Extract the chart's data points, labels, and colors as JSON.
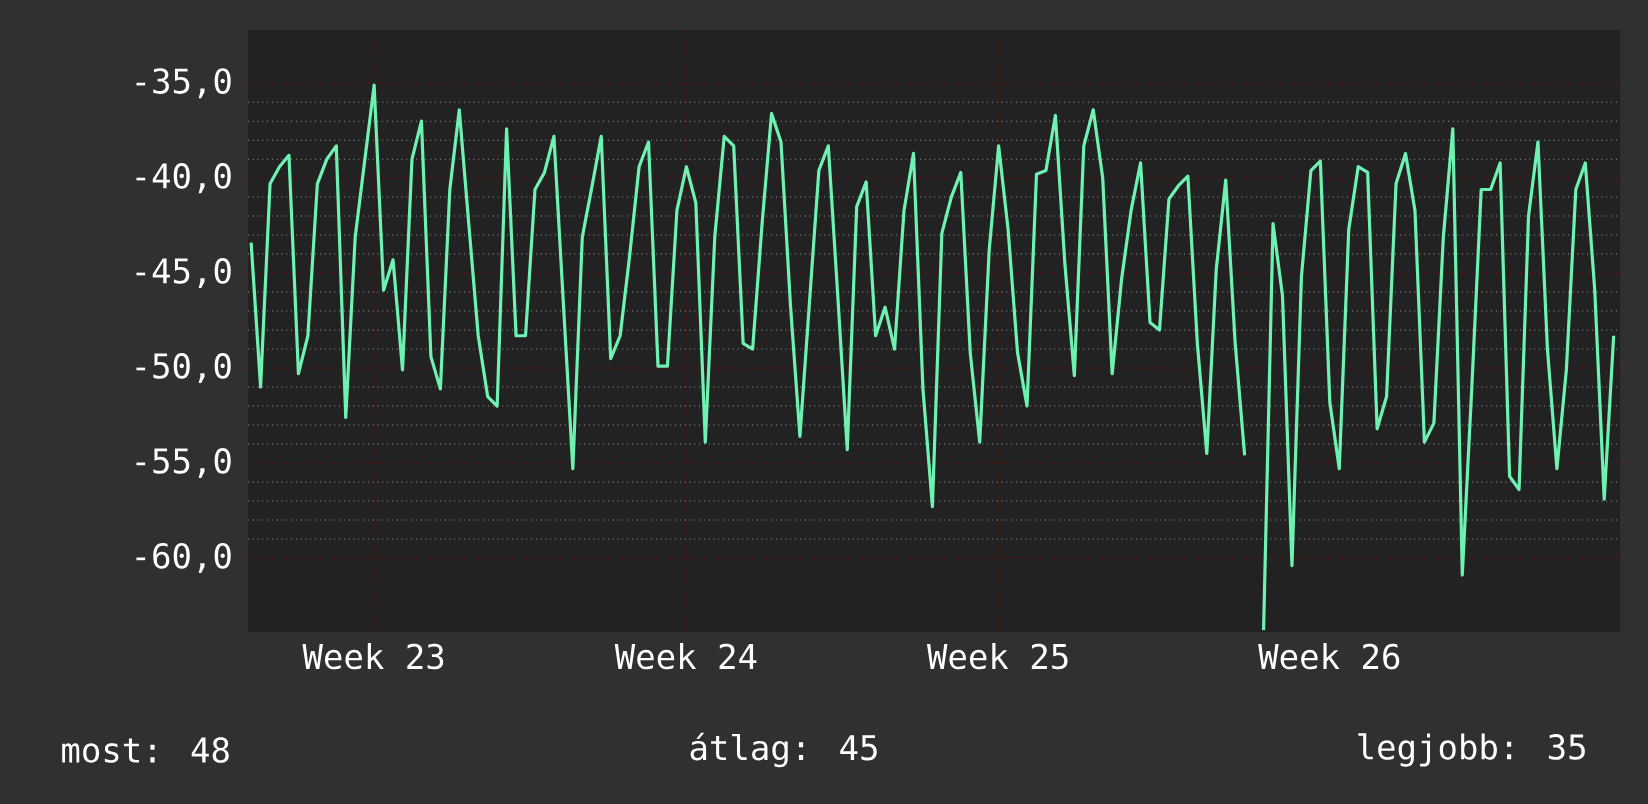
{
  "chart_data": {
    "type": "line",
    "color": "#6ef2b2",
    "grid": true,
    "ylim": [
      -63.9,
      -32.2
    ],
    "yticks": [
      {
        "value": -60,
        "label": "-60,0"
      },
      {
        "value": -55,
        "label": "-55,0"
      },
      {
        "value": -50,
        "label": "-50,0"
      },
      {
        "value": -45,
        "label": "-45,0"
      },
      {
        "value": -40,
        "label": "-40,0"
      },
      {
        "value": -35,
        "label": "-35,0"
      }
    ],
    "annotations": [
      "most: 48",
      "átlag: 45",
      "legjobb: 35"
    ],
    "categories": [
      null,
      null,
      null,
      null,
      null,
      null,
      null,
      null,
      null,
      null,
      null,
      null,
      null,
      "Week 23",
      null,
      null,
      null,
      null,
      null,
      null,
      null,
      null,
      null,
      null,
      null,
      null,
      null,
      null,
      null,
      null,
      null,
      null,
      null,
      null,
      null,
      null,
      null,
      null,
      null,
      null,
      null,
      null,
      null,
      null,
      null,
      null,
      "Week 24",
      null,
      null,
      null,
      null,
      null,
      null,
      null,
      null,
      null,
      null,
      null,
      null,
      null,
      null,
      null,
      null,
      null,
      null,
      null,
      null,
      null,
      null,
      null,
      null,
      null,
      null,
      null,
      null,
      null,
      null,
      null,
      null,
      "Week 25",
      null,
      null,
      null,
      null,
      null,
      null,
      null,
      null,
      null,
      null,
      null,
      null,
      null,
      null,
      null,
      null,
      null,
      null,
      null,
      null,
      null,
      null,
      null,
      null,
      null,
      null,
      null,
      null,
      null,
      null,
      null,
      null,
      null,
      null,
      "Week 26",
      null,
      null,
      null,
      null,
      null,
      null,
      null,
      null,
      null,
      null,
      null,
      null,
      null,
      null,
      null,
      null,
      null,
      null,
      null,
      null,
      null,
      null,
      null,
      null,
      null,
      null,
      null,
      null,
      null,
      null
    ],
    "values": [
      -43.4,
      -51.0,
      -40.3,
      -39.4,
      -38.8,
      -50.3,
      -48.3,
      -40.3,
      -39.0,
      -38.3,
      -52.6,
      -43.1,
      -39.1,
      -35.1,
      -45.9,
      -44.3,
      -50.1,
      -39.0,
      -37.0,
      -49.4,
      -51.1,
      -40.6,
      -36.4,
      -42.4,
      -48.3,
      -51.5,
      -52.0,
      -37.4,
      -48.3,
      -48.3,
      -40.6,
      -39.7,
      -37.8,
      -46.6,
      -55.3,
      -43.1,
      -40.5,
      -37.8,
      -49.5,
      -48.3,
      -44.1,
      -39.4,
      -38.1,
      -49.9,
      -49.9,
      -41.7,
      -39.4,
      -41.3,
      -53.9,
      -43.1,
      -37.8,
      -38.3,
      -48.7,
      -49.0,
      -42.4,
      -36.6,
      -38.1,
      -46.7,
      -53.6,
      -46.6,
      -39.6,
      -38.3,
      -46.2,
      -54.3,
      -41.5,
      -40.2,
      -48.3,
      -46.8,
      -49.0,
      -41.7,
      -38.7,
      -51.1,
      -57.3,
      -42.9,
      -41.0,
      -39.7,
      -49.2,
      -53.9,
      -43.8,
      -38.3,
      -42.7,
      -49.2,
      -52.0,
      -39.8,
      -39.6,
      -36.7,
      -44.5,
      -50.4,
      -38.3,
      -36.4,
      -40.0,
      -50.3,
      -45.3,
      -41.7,
      -39.2,
      -47.6,
      -48.0,
      -41.1,
      -40.4,
      -39.9,
      -48.7,
      -54.5,
      -44.8,
      -40.1,
      -48.7,
      -54.6,
      null,
      -63.8,
      -42.4,
      -46.2,
      -60.4,
      -45.2,
      -39.6,
      -39.1,
      -51.8,
      -55.3,
      -42.7,
      -39.4,
      -39.7,
      -53.2,
      -51.5,
      -40.3,
      -38.7,
      -41.7,
      -53.9,
      -52.9,
      -43.1,
      -37.4,
      -60.9,
      -51.1,
      -40.6,
      -40.6,
      -39.2,
      -55.7,
      -56.4,
      -42.0,
      -38.1,
      -49.0,
      -55.3,
      -50.1,
      -40.6,
      -39.2,
      -45.9,
      -56.9,
      -48.3
    ]
  }
}
